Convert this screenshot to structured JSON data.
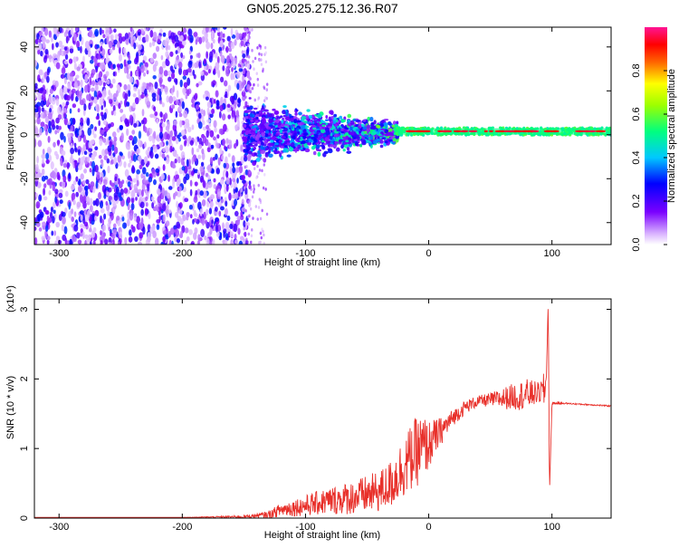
{
  "title": "GN05.2025.275.12.36.R07",
  "colors": {
    "snr_line": "#e8302a",
    "ridge": "#00c060",
    "ridge_peak": "#e00000",
    "scatter": "#6a1aff"
  },
  "chart_data": [
    {
      "type": "heatmap",
      "name": "spectrogram",
      "xlabel": "Height of straight line (km)",
      "ylabel": "Frequency (Hz)",
      "xlim": [
        -320,
        148
      ],
      "ylim": [
        -50,
        49
      ],
      "xticks": [
        -300,
        -200,
        -100,
        0,
        100
      ],
      "yticks": [
        -40,
        -20,
        0,
        20,
        40
      ],
      "grid": false,
      "description_bands": [
        {
          "x_range": [
            -320,
            -150
          ],
          "frequency_spread": [
            -50,
            49
          ],
          "amplitude": [
            0.05,
            0.3
          ]
        },
        {
          "x_range": [
            -150,
            -25
          ],
          "frequency_spread": [
            -20,
            20
          ],
          "amplitude": [
            0.1,
            0.5
          ]
        },
        {
          "x_range": [
            -25,
            148
          ],
          "frequency_center": 1.5,
          "frequency_width": 4,
          "amplitude": [
            0.4,
            1.0
          ]
        }
      ],
      "colorbar": {
        "label": "Normalized spectral amplitude",
        "range": [
          0,
          1
        ],
        "ticks": [
          "0.0",
          "0.2",
          "0.4",
          "0.6",
          "0.8"
        ],
        "colormap": "rainbow (white/violet → blue → cyan → green → yellow → red → magenta)"
      }
    },
    {
      "type": "line",
      "name": "snr",
      "xlabel": "Height of straight line (km)",
      "ylabel": "SNR (10 * v/v)",
      "y_multiplier": "(x10⁴)",
      "xlim": [
        -320,
        148
      ],
      "ylim": [
        0,
        3.15
      ],
      "xticks": [
        -300,
        -200,
        -100,
        0,
        100
      ],
      "yticks": [
        0,
        1,
        2,
        3
      ],
      "grid": false,
      "series": [
        {
          "x": [
            -320,
            -250,
            -200,
            -150,
            -130,
            -120,
            -100,
            -80,
            -60,
            -40,
            -30,
            -20,
            -10,
            -5,
            0,
            10,
            20,
            30,
            40,
            50,
            60,
            70,
            80,
            90,
            95,
            97,
            98,
            100,
            110,
            120,
            130,
            140,
            148
          ],
          "y": [
            0.01,
            0.01,
            0.01,
            0.02,
            0.05,
            0.12,
            0.18,
            0.25,
            0.3,
            0.38,
            0.5,
            0.75,
            0.95,
            1.0,
            1.05,
            1.25,
            1.45,
            1.6,
            1.68,
            1.7,
            1.72,
            1.75,
            1.78,
            1.8,
            1.85,
            3.1,
            0.35,
            1.65,
            1.65,
            1.64,
            1.63,
            1.62,
            1.61
          ],
          "noise": [
            0.0,
            0.0,
            0.0,
            0.02,
            0.05,
            0.1,
            0.15,
            0.2,
            0.25,
            0.3,
            0.35,
            0.45,
            0.5,
            0.5,
            0.35,
            0.2,
            0.12,
            0.1,
            0.08,
            0.1,
            0.15,
            0.2,
            0.22,
            0.15,
            0.3,
            0.0,
            0.0,
            0.02,
            0.01,
            0.01,
            0.01,
            0.01,
            0.01
          ]
        }
      ]
    }
  ]
}
